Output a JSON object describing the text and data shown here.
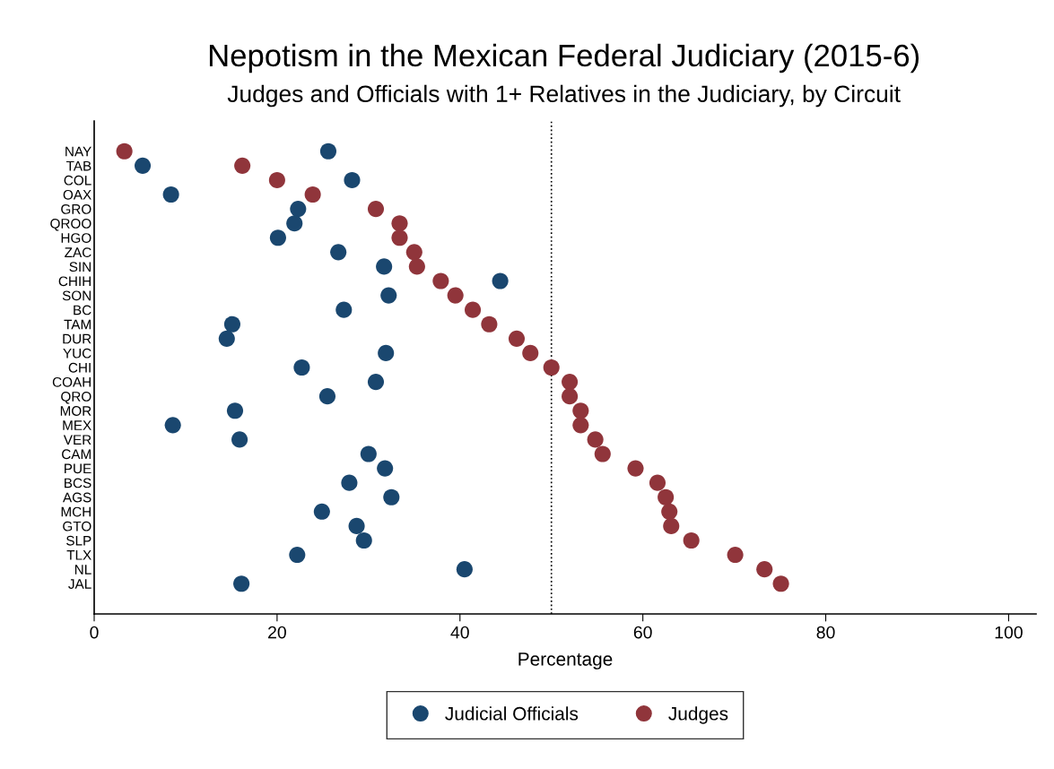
{
  "chart_data": {
    "type": "scatter",
    "title": "Nepotism in the Mexican Federal Judiciary (2015-6)",
    "subtitle": "Judges and Officials with 1+ Relatives in the Judiciary, by Circuit",
    "xlabel": "Percentage",
    "orientation": "horizontal",
    "categories": [
      "NAY",
      "TAB",
      "COL",
      "OAX",
      "GRO",
      "QROO",
      "HGO",
      "ZAC",
      "SIN",
      "CHIH",
      "SON",
      "BC",
      "TAM",
      "DUR",
      "YUC",
      "CHI",
      "COAH",
      "QRO",
      "MOR",
      "MEX",
      "VER",
      "CAM",
      "PUE",
      "BCS",
      "AGS",
      "MCH",
      "GTO",
      "SLP",
      "TLX",
      "NL",
      "JAL"
    ],
    "series": [
      {
        "name": "Judicial Officials",
        "color": "#1a476f",
        "values": [
          25.6,
          5.3,
          28.2,
          8.4,
          22.3,
          21.9,
          20.1,
          26.7,
          31.7,
          44.4,
          32.2,
          27.3,
          15.1,
          14.5,
          31.9,
          22.7,
          30.8,
          25.5,
          15.4,
          8.6,
          15.9,
          30.0,
          31.8,
          27.9,
          32.5,
          24.9,
          28.7,
          29.5,
          22.2,
          40.5,
          16.1
        ]
      },
      {
        "name": "Judges",
        "color": "#90353b",
        "values": [
          3.3,
          16.2,
          20.0,
          23.9,
          30.8,
          33.4,
          33.4,
          35.0,
          35.3,
          37.9,
          39.5,
          41.4,
          43.2,
          46.2,
          47.7,
          50.0,
          52.0,
          52.0,
          53.2,
          53.2,
          54.8,
          55.6,
          59.2,
          61.6,
          62.5,
          62.9,
          63.1,
          65.3,
          70.1,
          73.3,
          75.1
        ]
      }
    ],
    "xlim": [
      0,
      103
    ],
    "xticks": [
      0,
      20,
      40,
      60,
      80,
      100
    ],
    "ref_lines": [
      {
        "axis": "x",
        "value": 50,
        "line_style": "dotted",
        "color": "#000000"
      }
    ],
    "marker": "circle",
    "grid": false,
    "legend": "bottom"
  }
}
